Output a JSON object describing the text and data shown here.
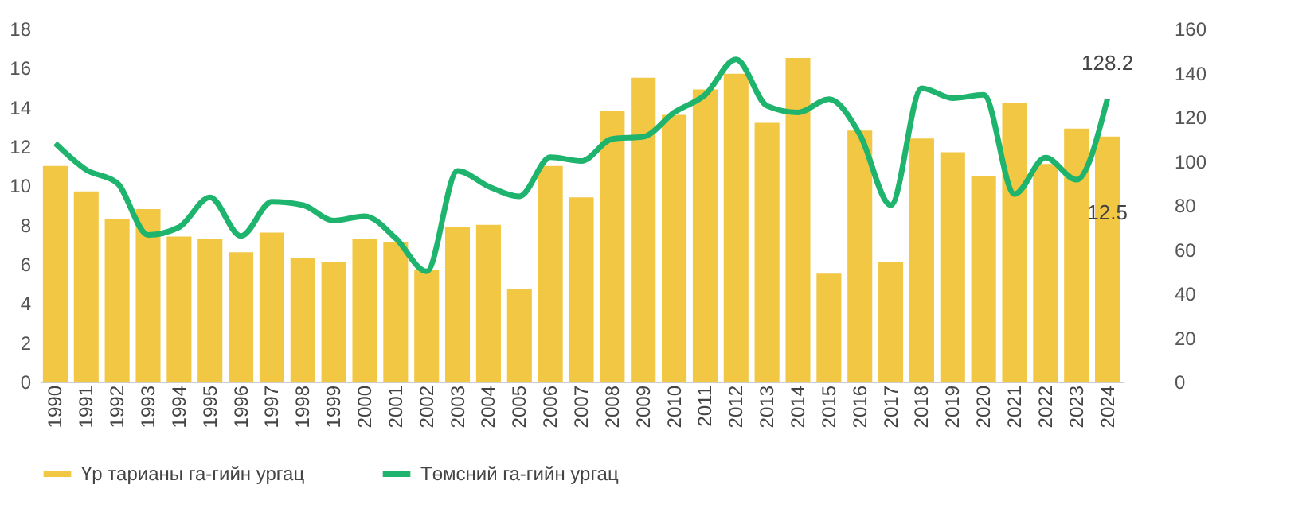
{
  "chart_data": {
    "type": "bar",
    "categories": [
      "1990",
      "1991",
      "1992",
      "1993",
      "1994",
      "1995",
      "1996",
      "1997",
      "1998",
      "1999",
      "2000",
      "2001",
      "2002",
      "2003",
      "2004",
      "2005",
      "2006",
      "2007",
      "2008",
      "2009",
      "2010",
      "2011",
      "2012",
      "2013",
      "2014",
      "2015",
      "2016",
      "2017",
      "2018",
      "2019",
      "2020",
      "2021",
      "2022",
      "2023",
      "2024"
    ],
    "series": [
      {
        "name": "Үр тарианы га-гийн ургац",
        "color": "#f2c744",
        "values": [
          11.0,
          9.7,
          8.3,
          8.8,
          7.4,
          7.3,
          6.6,
          7.6,
          6.3,
          6.1,
          7.3,
          7.1,
          5.7,
          7.9,
          8.0,
          4.7,
          11.0,
          9.4,
          13.8,
          15.5,
          13.6,
          14.9,
          15.7,
          13.2,
          16.5,
          5.5,
          12.8,
          6.1,
          12.4,
          11.7,
          10.5,
          14.2,
          11.1,
          12.9,
          12.5
        ],
        "value_labels": [
          null,
          null,
          null,
          null,
          null,
          null,
          null,
          null,
          null,
          null,
          null,
          null,
          null,
          null,
          null,
          null,
          null,
          null,
          null,
          null,
          null,
          null,
          null,
          null,
          null,
          null,
          null,
          null,
          null,
          null,
          null,
          null,
          null,
          null,
          "12.5"
        ]
      },
      {
        "name": "Төмсний га-гийн ургац",
        "type": "line",
        "axis": "y2",
        "color": "#1fb46e",
        "values": [
          108,
          96,
          90,
          66.5,
          70,
          83.5,
          66,
          81.5,
          80,
          73,
          75,
          65,
          50,
          95.5,
          88.5,
          84,
          101.7,
          100,
          110,
          111,
          122,
          130,
          146,
          125,
          122,
          128,
          112,
          80,
          133,
          128.5,
          130,
          85,
          101.5,
          91.5,
          128.2
        ],
        "value_labels": [
          null,
          null,
          null,
          null,
          null,
          null,
          null,
          null,
          null,
          null,
          null,
          null,
          null,
          null,
          null,
          null,
          null,
          null,
          null,
          null,
          null,
          null,
          null,
          null,
          null,
          null,
          null,
          null,
          null,
          null,
          null,
          null,
          null,
          null,
          "128.2"
        ]
      }
    ],
    "ylim": [
      0,
      18
    ],
    "yticks": [
      0,
      2,
      4,
      6,
      8,
      10,
      12,
      14,
      16,
      18
    ],
    "y2lim": [
      0,
      160
    ],
    "y2ticks": [
      0,
      20,
      40,
      60,
      80,
      100,
      120,
      140,
      160
    ],
    "grid": false,
    "legend": "bottom"
  }
}
